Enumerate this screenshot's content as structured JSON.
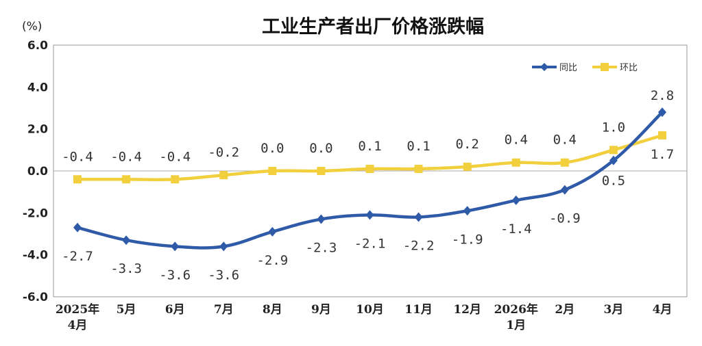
{
  "chart_data": {
    "type": "line",
    "title": "工业生产者出厂价格涨跌幅",
    "ylabel": "(%)",
    "ylim": [
      -6.0,
      6.0
    ],
    "yticks": [
      "6.0",
      "4.0",
      "2.0",
      "0.0",
      "-2.0",
      "-4.0",
      "-6.0"
    ],
    "ytick_values": [
      6,
      4,
      2,
      0,
      -2,
      -4,
      -6
    ],
    "categories": [
      [
        "2025年",
        "4月"
      ],
      [
        "5月"
      ],
      [
        "6月"
      ],
      [
        "7月"
      ],
      [
        "8月"
      ],
      [
        "9月"
      ],
      [
        "10月"
      ],
      [
        "11月"
      ],
      [
        "12月"
      ],
      [
        "2026年",
        "1月"
      ],
      [
        "2月"
      ],
      [
        "3月"
      ],
      [
        "4月"
      ]
    ],
    "legend_position": "top-right",
    "grid": false,
    "series": [
      {
        "name": "同比",
        "color": "#2e5aa8",
        "marker": "diamond",
        "values": [
          -2.7,
          -3.3,
          -3.6,
          -3.6,
          -2.9,
          -2.3,
          -2.1,
          -2.2,
          -1.9,
          -1.4,
          -0.9,
          0.5,
          2.8
        ],
        "labels": [
          "-2.7",
          "-3.3",
          "-3.6",
          "-3.6",
          "-2.9",
          "-2.3",
          "-2.1",
          "-2.2",
          "-1.9",
          "-1.4",
          "-0.9",
          "0.5",
          "2.8"
        ],
        "label_side": [
          "below",
          "below",
          "below",
          "below",
          "below",
          "below",
          "below",
          "below",
          "below",
          "below",
          "below",
          "below",
          "above"
        ]
      },
      {
        "name": "环比",
        "color": "#f2cf3c",
        "marker": "square",
        "values": [
          -0.4,
          -0.4,
          -0.4,
          -0.2,
          0.0,
          0.0,
          0.1,
          0.1,
          0.2,
          0.4,
          0.4,
          1.0,
          1.7
        ],
        "labels": [
          "-0.4",
          "-0.4",
          "-0.4",
          "-0.2",
          "0.0",
          "0.0",
          "0.1",
          "0.1",
          "0.2",
          "0.4",
          "0.4",
          "1.0",
          "1.7"
        ],
        "label_side": [
          "above",
          "above",
          "above",
          "above",
          "above",
          "above",
          "above",
          "above",
          "above",
          "above",
          "above",
          "above",
          "below"
        ]
      }
    ]
  }
}
